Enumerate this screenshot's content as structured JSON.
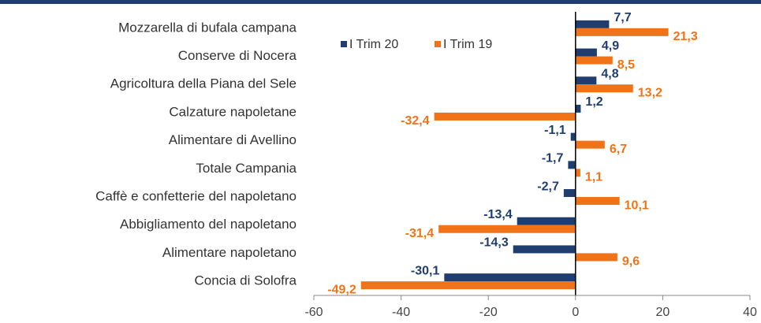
{
  "chart_data": {
    "type": "bar",
    "orientation": "horizontal",
    "categories": [
      "Mozzarella di bufala campana",
      "Conserve di Nocera",
      "Agricoltura della Piana del Sele",
      "Calzature napoletane",
      "Alimentare di Avellino",
      "Totale Campania",
      "Caffè e confetterie del napoletano",
      "Abbigliamento del napoletano",
      "Alimentare napoletano",
      "Concia di Solofra"
    ],
    "series": [
      {
        "name": "I Trim 20",
        "color": "#1f3e6f",
        "values": [
          7.7,
          4.9,
          4.8,
          1.2,
          -1.1,
          -1.7,
          -2.7,
          -13.4,
          -14.3,
          -30.1
        ],
        "value_labels": [
          "7,7",
          "4,9",
          "4,8",
          "1,2",
          "-1,1",
          "-1,7",
          "-2,7",
          "-13,4",
          "-14,3",
          "-30,1"
        ]
      },
      {
        "name": "I Trim 19",
        "color": "#f07318",
        "values": [
          21.3,
          8.5,
          13.2,
          -32.4,
          6.7,
          1.1,
          10.1,
          -31.4,
          9.6,
          -49.2
        ],
        "value_labels": [
          "21,3",
          "8,5",
          "13,2",
          "-32,4",
          "6,7",
          "1,1",
          "10,1",
          "-31,4",
          "9,6",
          "-49,2"
        ]
      }
    ],
    "xlim": [
      -60,
      40
    ],
    "xticks": [
      -60,
      -40,
      -20,
      0,
      20,
      40
    ],
    "legend": "top-left"
  }
}
